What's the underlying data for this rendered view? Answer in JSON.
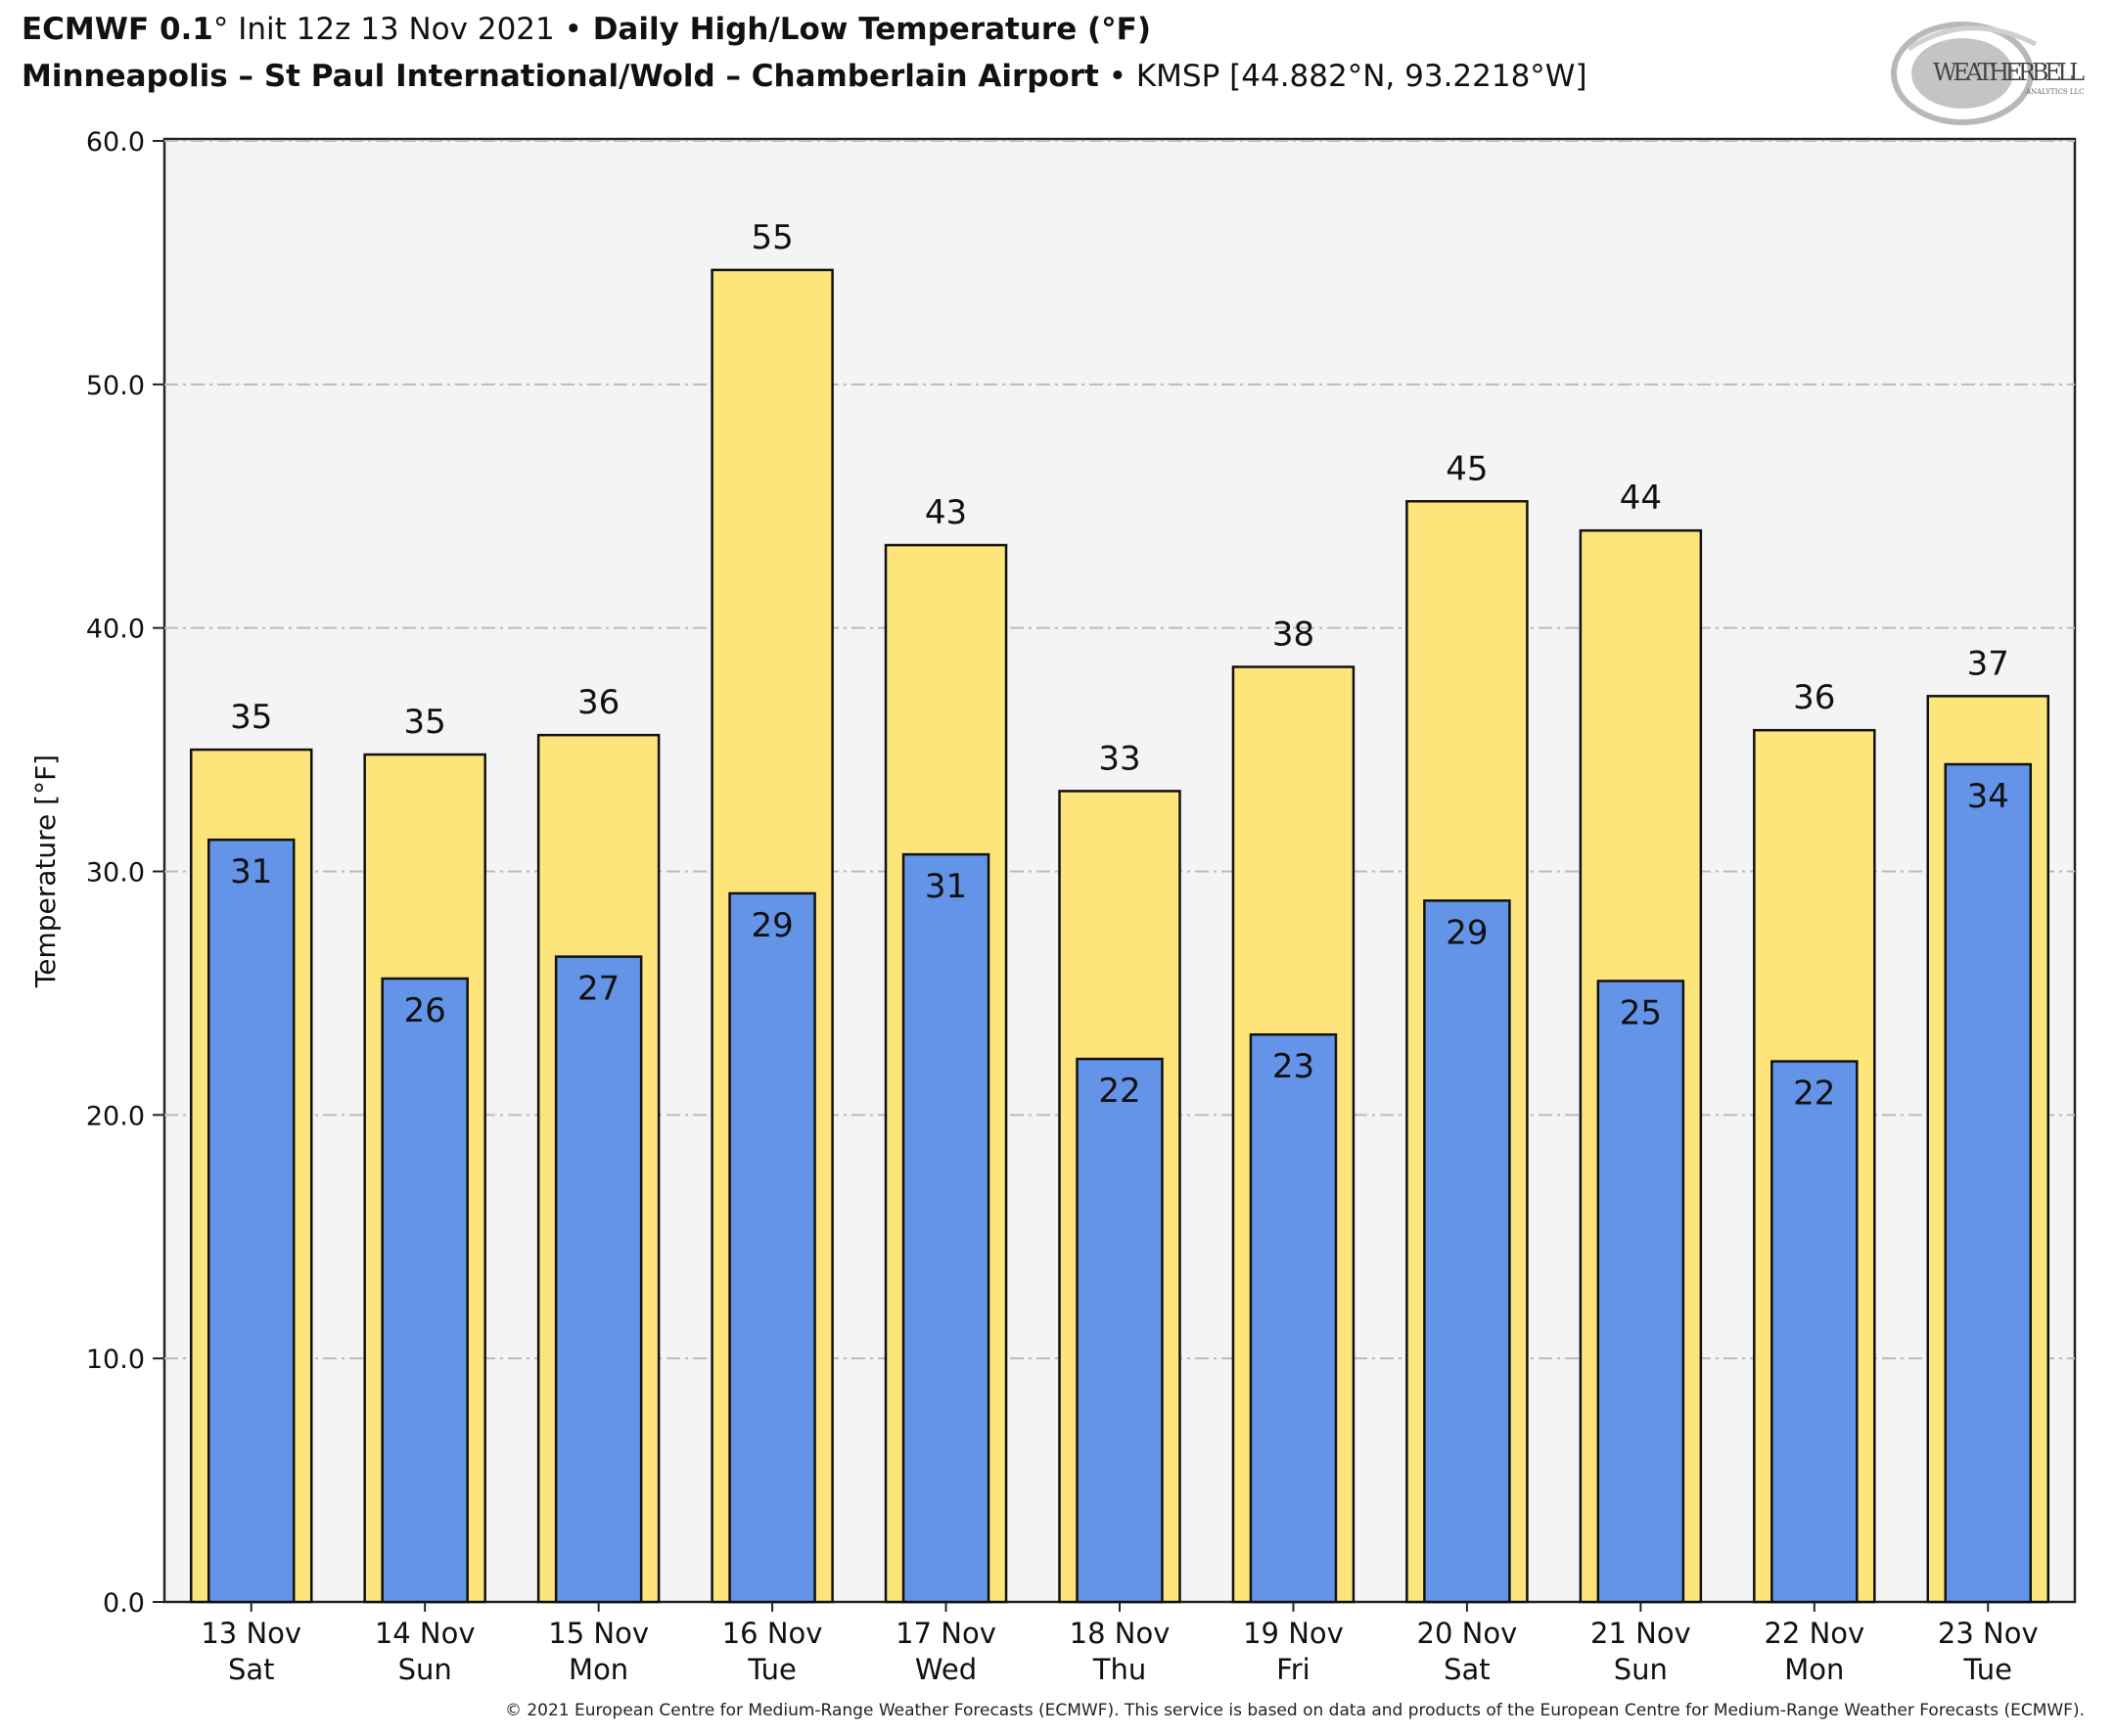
{
  "header": {
    "model": "ECMWF 0.1",
    "degree": "°",
    "init": " Init 12z 13 Nov 2021 ",
    "bullet": "•",
    "product": " Daily High/Low Temperature (°F)",
    "station_name": "Minneapolis – St Paul International/Wold – Chamberlain Airport",
    "station_info": " KMSP [44.882°N, 93.2218°W]"
  },
  "logo": {
    "text_main": "WEATHERBELL",
    "text_sub": "ANALYTICS LLC"
  },
  "footer": "© 2021 European Centre for Medium-Range Weather Forecasts (ECMWF). This service is based on data and products of the European Centre for Medium-Range Weather Forecasts (ECMWF).",
  "colors": {
    "high": "#fde57b",
    "low": "#6494e8",
    "plot_bg": "#f4f4f5",
    "grid": "#bbbbbb"
  },
  "chart_data": {
    "type": "bar",
    "title": "Daily High/Low Temperature (°F)",
    "xlabel": "",
    "ylabel": "Temperature [°F]",
    "ylim": [
      0,
      60
    ],
    "yticks": [
      "0.0",
      "10.0",
      "20.0",
      "30.0",
      "40.0",
      "50.0",
      "60.0"
    ],
    "grid": true,
    "categories": [
      {
        "date": "13 Nov",
        "day": "Sat"
      },
      {
        "date": "14 Nov",
        "day": "Sun"
      },
      {
        "date": "15 Nov",
        "day": "Mon"
      },
      {
        "date": "16 Nov",
        "day": "Tue"
      },
      {
        "date": "17 Nov",
        "day": "Wed"
      },
      {
        "date": "18 Nov",
        "day": "Thu"
      },
      {
        "date": "19 Nov",
        "day": "Fri"
      },
      {
        "date": "20 Nov",
        "day": "Sat"
      },
      {
        "date": "21 Nov",
        "day": "Sun"
      },
      {
        "date": "22 Nov",
        "day": "Mon"
      },
      {
        "date": "23 Nov",
        "day": "Tue"
      }
    ],
    "series": [
      {
        "name": "High",
        "values": [
          35.0,
          34.8,
          35.6,
          54.7,
          43.4,
          33.3,
          38.4,
          45.2,
          44.0,
          35.8,
          37.2
        ],
        "labels": [
          "35",
          "35",
          "36",
          "55",
          "43",
          "33",
          "38",
          "45",
          "44",
          "36",
          "37"
        ]
      },
      {
        "name": "Low",
        "values": [
          31.3,
          25.6,
          26.5,
          29.1,
          30.7,
          22.3,
          23.3,
          28.8,
          25.5,
          22.2,
          34.4
        ],
        "labels": [
          "31",
          "26",
          "27",
          "29",
          "31",
          "22",
          "23",
          "29",
          "25",
          "22",
          "34"
        ]
      }
    ]
  }
}
